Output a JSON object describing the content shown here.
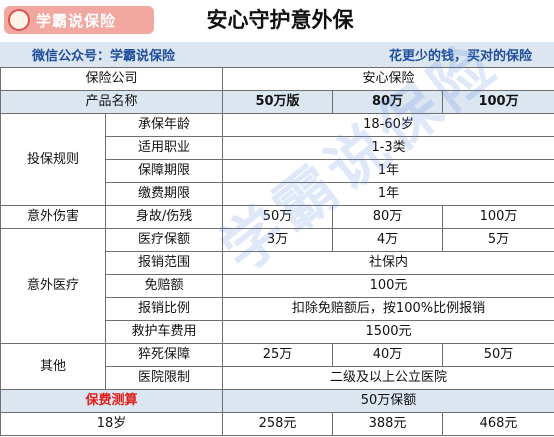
{
  "header": {
    "logo": "学霸说保险",
    "title": "安心守护意外保",
    "account": "微信公众号：学霸说保险",
    "slogan": "花更少的钱，买对的保险"
  },
  "table": {
    "rows": [
      [
        "保险公司",
        "安心保险"
      ],
      [
        "产品名称",
        "50万版",
        "80万",
        "100万"
      ],
      [
        "投保规则",
        "承保年龄",
        "18-60岁"
      ],
      [
        "适用职业",
        "1-3类"
      ],
      [
        "保障期限",
        "1年"
      ],
      [
        "缴费期限",
        "1年"
      ],
      [
        "意外伤害",
        "身故/伤残",
        "50万",
        "80万",
        "100万"
      ],
      [
        "意外医疗",
        "医疗保额",
        "3万",
        "4万",
        "5万"
      ],
      [
        "报销范围",
        "社保内"
      ],
      [
        "免赔额",
        "100元"
      ],
      [
        "报销比例",
        "扣除免赔额后，按100%比例报销"
      ],
      [
        "救护车费用",
        "1500元"
      ],
      [
        "其他",
        "猝死保障",
        "25万",
        "40万",
        "50万"
      ],
      [
        "医院限制",
        "二级及以上公立医院"
      ],
      [
        "保费测算",
        "50万保额"
      ],
      [
        "18岁",
        "258元",
        "388元",
        "468元"
      ]
    ]
  },
  "watermark": "学霸说保险"
}
